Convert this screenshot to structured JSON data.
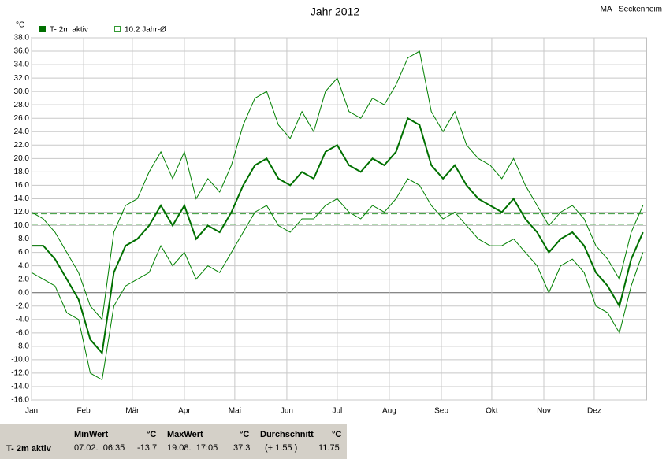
{
  "chart_data": {
    "type": "line",
    "title": "Jahr 2012",
    "station": "MA - Seckenheim",
    "y_unit": "°C",
    "x": [
      0,
      7,
      14,
      21,
      28,
      35,
      42,
      49,
      56,
      63,
      70,
      77,
      84,
      91,
      98,
      105,
      112,
      119,
      126,
      133,
      140,
      147,
      154,
      161,
      168,
      175,
      182,
      189,
      196,
      203,
      210,
      217,
      224,
      231,
      238,
      245,
      252,
      259,
      266,
      273,
      280,
      287,
      294,
      301,
      308,
      315,
      322,
      329,
      336,
      343,
      350,
      357,
      364
    ],
    "series": [
      {
        "name": "T- 2m aktiv",
        "color": "#007000",
        "width": 2,
        "values": [
          7,
          7,
          5,
          2,
          -1,
          -7,
          -9,
          3,
          7,
          8,
          10,
          13,
          10,
          13,
          8,
          10,
          9,
          12,
          16,
          19,
          20,
          17,
          16,
          18,
          17,
          21,
          22,
          19,
          18,
          20,
          19,
          21,
          26,
          25,
          19,
          17,
          19,
          16,
          14,
          13,
          12,
          14,
          11,
          9,
          6,
          8,
          9,
          7,
          3,
          1,
          -2,
          5,
          9
        ]
      },
      {
        "color": "#008000",
        "width": 1,
        "values": [
          3,
          2,
          1,
          -3,
          -4,
          -12,
          -13,
          -2,
          1,
          2,
          3,
          7,
          4,
          6,
          2,
          4,
          3,
          6,
          9,
          12,
          13,
          10,
          9,
          11,
          11,
          13,
          14,
          12,
          11,
          13,
          12,
          14,
          17,
          16,
          13,
          11,
          12,
          10,
          8,
          7,
          7,
          8,
          6,
          4,
          0,
          4,
          5,
          3,
          -2,
          -3,
          -6,
          1,
          6
        ]
      },
      {
        "color": "#008000",
        "width": 1,
        "values": [
          12,
          11,
          9,
          6,
          3,
          -2,
          -4,
          9,
          13,
          14,
          18,
          21,
          17,
          21,
          14,
          17,
          15,
          19,
          25,
          29,
          30,
          25,
          23,
          27,
          24,
          30,
          32,
          27,
          26,
          29,
          28,
          31,
          35,
          36,
          27,
          24,
          27,
          22,
          20,
          19,
          17,
          20,
          16,
          13,
          10,
          12,
          13,
          11,
          7,
          5,
          2,
          9,
          13
        ]
      }
    ],
    "reference_lines": [
      {
        "value": 11.75,
        "color": "#339933"
      },
      {
        "value": 10.2,
        "color": "#339933",
        "label": "10.2 Jahr-Ø"
      }
    ],
    "xlim": [
      0,
      366
    ],
    "xticks": [
      {
        "value": 0,
        "label": "Jan"
      },
      {
        "value": 31,
        "label": "Feb"
      },
      {
        "value": 60,
        "label": "Mär"
      },
      {
        "value": 91,
        "label": "Apr"
      },
      {
        "value": 121,
        "label": "Mai"
      },
      {
        "value": 152,
        "label": "Jun"
      },
      {
        "value": 182,
        "label": "Jul"
      },
      {
        "value": 213,
        "label": "Aug"
      },
      {
        "value": 244,
        "label": "Sep"
      },
      {
        "value": 274,
        "label": "Okt"
      },
      {
        "value": 305,
        "label": "Nov"
      },
      {
        "value": 335,
        "label": "Dez"
      }
    ],
    "ylim": [
      -16,
      38
    ],
    "yticks": [
      {
        "value": 38,
        "label": "38.0"
      },
      {
        "value": 36,
        "label": "36.0"
      },
      {
        "value": 34,
        "label": "34.0"
      },
      {
        "value": 32,
        "label": "32.0"
      },
      {
        "value": 30,
        "label": "30.0"
      },
      {
        "value": 28,
        "label": "28.0"
      },
      {
        "value": 26,
        "label": "26.0"
      },
      {
        "value": 24,
        "label": "24.0"
      },
      {
        "value": 22,
        "label": "22.0"
      },
      {
        "value": 20,
        "label": "20.0"
      },
      {
        "value": 18,
        "label": "18.0"
      },
      {
        "value": 16,
        "label": "16.0"
      },
      {
        "value": 14,
        "label": "14.0"
      },
      {
        "value": 12,
        "label": "12.0"
      },
      {
        "value": 10,
        "label": "10.0"
      },
      {
        "value": 8,
        "label": "8.0"
      },
      {
        "value": 6,
        "label": "6.0"
      },
      {
        "value": 4,
        "label": "4.0"
      },
      {
        "value": 2,
        "label": "2.0"
      },
      {
        "value": 0,
        "label": "0.0"
      },
      {
        "value": -2,
        "label": "-2.0"
      },
      {
        "value": -4,
        "label": "-4.0"
      },
      {
        "value": -6,
        "label": "-6.0"
      },
      {
        "value": -8,
        "label": "-8.0"
      },
      {
        "value": -10,
        "label": "-10.0"
      },
      {
        "value": -12,
        "label": "-12.0"
      },
      {
        "value": -14,
        "label": "-14.0"
      },
      {
        "value": -16,
        "label": "-16.0"
      }
    ],
    "grid": true
  },
  "stats": {
    "label": "T- 2m aktiv",
    "min": {
      "header": "MinWert",
      "unit": "°C",
      "time": "07.02.  06:35",
      "value": -13.7
    },
    "max": {
      "header": "MaxWert",
      "unit": "°C",
      "time": "19.08.  17:05",
      "value": 37.3
    },
    "avg": {
      "header": "Durchschnitt",
      "unit": "°C",
      "time": "(+ 1.55 )",
      "value": 11.75
    }
  }
}
